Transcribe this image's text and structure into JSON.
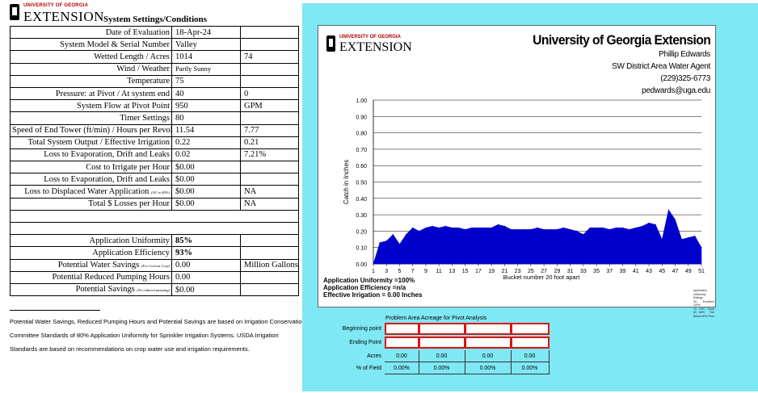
{
  "logo": {
    "university": "UNIVERSITY OF GEORGIA",
    "extension": "EXTENSION"
  },
  "sheet_title": "System Settings/Conditions",
  "settings_rows": [
    {
      "label": "Date of Evaluation",
      "v1": "18-Apr-24",
      "v2": ""
    },
    {
      "label": "System Model & Serial Number",
      "v1": "Valley",
      "v2": ""
    },
    {
      "label": "Wetted Length  /  Acres",
      "v1": "1014",
      "v2": "74"
    },
    {
      "label": "Wind  /  Weather",
      "v1": "Partly Sunny",
      "v2": ""
    },
    {
      "label": "Temperature",
      "v1": "75",
      "v2": ""
    },
    {
      "label": "Pressure:  at Pivot  /  At system end",
      "v1": "40",
      "v2": "0"
    },
    {
      "label": "System Flow at Pivot Point",
      "v1": "950",
      "v2": "GPM"
    },
    {
      "label": "Timer Settings",
      "v1": "80",
      "v2": ""
    },
    {
      "label": "Speed of End Tower (ft/min)  /  Hours per Revolution",
      "v1": "11.54",
      "v2": "7.77"
    },
    {
      "label": "Total System Output  /  Effective Irrigation",
      "v1": "0.22",
      "v2": "0.21"
    },
    {
      "label": "Loss to Evaporation, Drift and Leaks",
      "v1": "0.02",
      "v2": "7.21%"
    },
    {
      "label": "Cost to Irrigate per Hour",
      "v1": "$0.00",
      "v2": ""
    },
    {
      "label": "Loss to Evaporation, Drift and Leaks",
      "v1": "$0.00",
      "v2": ""
    },
    {
      "label": "Loss to Displaced Water Application",
      "note": "(AU to 80%)",
      "v1": "$0.00",
      "v2": "NA"
    },
    {
      "label": "Total $ Losses per Hour",
      "v1": "$0.00",
      "v2": "NA"
    }
  ],
  "performance_rows": [
    {
      "label": "Application Uniformity",
      "v1": "85%",
      "v2": "",
      "bold": true
    },
    {
      "label": "Application Efficiency",
      "v1": "93%",
      "v2": "",
      "bold": true
    },
    {
      "label": "Potential Water Savings",
      "note": "(For Current Crop)",
      "v1": "0.00",
      "v2": "Million Gallons"
    },
    {
      "label": "Potential Reduced Pumping Hours",
      "v1": "0.00",
      "v2": ""
    },
    {
      "label": "Potential Savings",
      "note": "(No reduced pumping)",
      "v1": "$0.00",
      "v2": ""
    }
  ],
  "notes": [
    "Potential Water Savings, Reduced Pumping Hours and Potential Savings are based on Irrigation Conservation",
    "Committee Standards of 80% Application Uniformity for Sprinkler Irrigation Systems.  USDA Irrigation",
    "Standards are based on recommendations on crop water use and irrigation requirements."
  ],
  "agent": {
    "org": "University of Georgia Extension",
    "name": "Phillip Edwards",
    "title": "SW District Area Water Agent",
    "phone": "(229)325-6773",
    "email": "pedwards@uga.edu"
  },
  "chart_data": {
    "type": "area",
    "title": "",
    "xlabel": "Bucket number 20 foot apart",
    "ylabel": "Catch in Inches",
    "ylim": [
      0,
      1.0
    ],
    "yticks": [
      "0.00",
      "0.10",
      "0.20",
      "0.30",
      "0.40",
      "0.50",
      "0.60",
      "0.70",
      "0.80",
      "0.90",
      "1.00"
    ],
    "xticks": [
      "1",
      "3",
      "5",
      "7",
      "9",
      "11",
      "13",
      "15",
      "17",
      "19",
      "21",
      "23",
      "25",
      "27",
      "29",
      "31",
      "33",
      "35",
      "37",
      "39",
      "41",
      "43",
      "45",
      "47",
      "49",
      "51"
    ],
    "x": [
      1,
      2,
      3,
      4,
      5,
      6,
      7,
      8,
      9,
      10,
      11,
      12,
      13,
      14,
      15,
      16,
      17,
      18,
      19,
      20,
      21,
      22,
      23,
      24,
      25,
      26,
      27,
      28,
      29,
      30,
      31,
      32,
      33,
      34,
      35,
      36,
      37,
      38,
      39,
      40,
      41,
      42,
      43,
      44,
      45,
      46,
      47,
      48,
      49,
      50,
      51
    ],
    "values": [
      0.0,
      0.13,
      0.14,
      0.18,
      0.12,
      0.18,
      0.22,
      0.2,
      0.22,
      0.23,
      0.22,
      0.23,
      0.22,
      0.22,
      0.21,
      0.22,
      0.22,
      0.22,
      0.22,
      0.24,
      0.23,
      0.21,
      0.21,
      0.21,
      0.21,
      0.22,
      0.21,
      0.21,
      0.21,
      0.22,
      0.21,
      0.2,
      0.18,
      0.22,
      0.22,
      0.22,
      0.21,
      0.22,
      0.22,
      0.21,
      0.22,
      0.23,
      0.25,
      0.24,
      0.15,
      0.33,
      0.27,
      0.15,
      0.16,
      0.17,
      0.1
    ],
    "series_color": "#0000cc",
    "grid": true
  },
  "chart_stats": {
    "uniformity": "Application Uniformity =100%",
    "efficiency": "Application Efficiency =n/a",
    "effective": "Effective Irrigation = 0.00 Inches"
  },
  "ratings_legend": {
    "title": "Application Uniformity Ratings",
    "rows": [
      {
        "range": "90-100%",
        "rating": "Excellent"
      },
      {
        "range": "70 - 79%",
        "rating": "Good"
      },
      {
        "range": "60 - 69%",
        "rating": "Fair"
      },
      {
        "range": "Below 60%",
        "rating": "Poor"
      }
    ]
  },
  "problem_area": {
    "title": "Problem Area Acreage for Pivot Analysis",
    "labels": [
      "Beginning point",
      "Ending Point",
      "Acres",
      "% of Field"
    ],
    "acres": [
      "0.00",
      "0.00",
      "0.00",
      "0.00"
    ],
    "percent": [
      "0.00%",
      "0.00%",
      "0.00%",
      "0.00%"
    ]
  }
}
